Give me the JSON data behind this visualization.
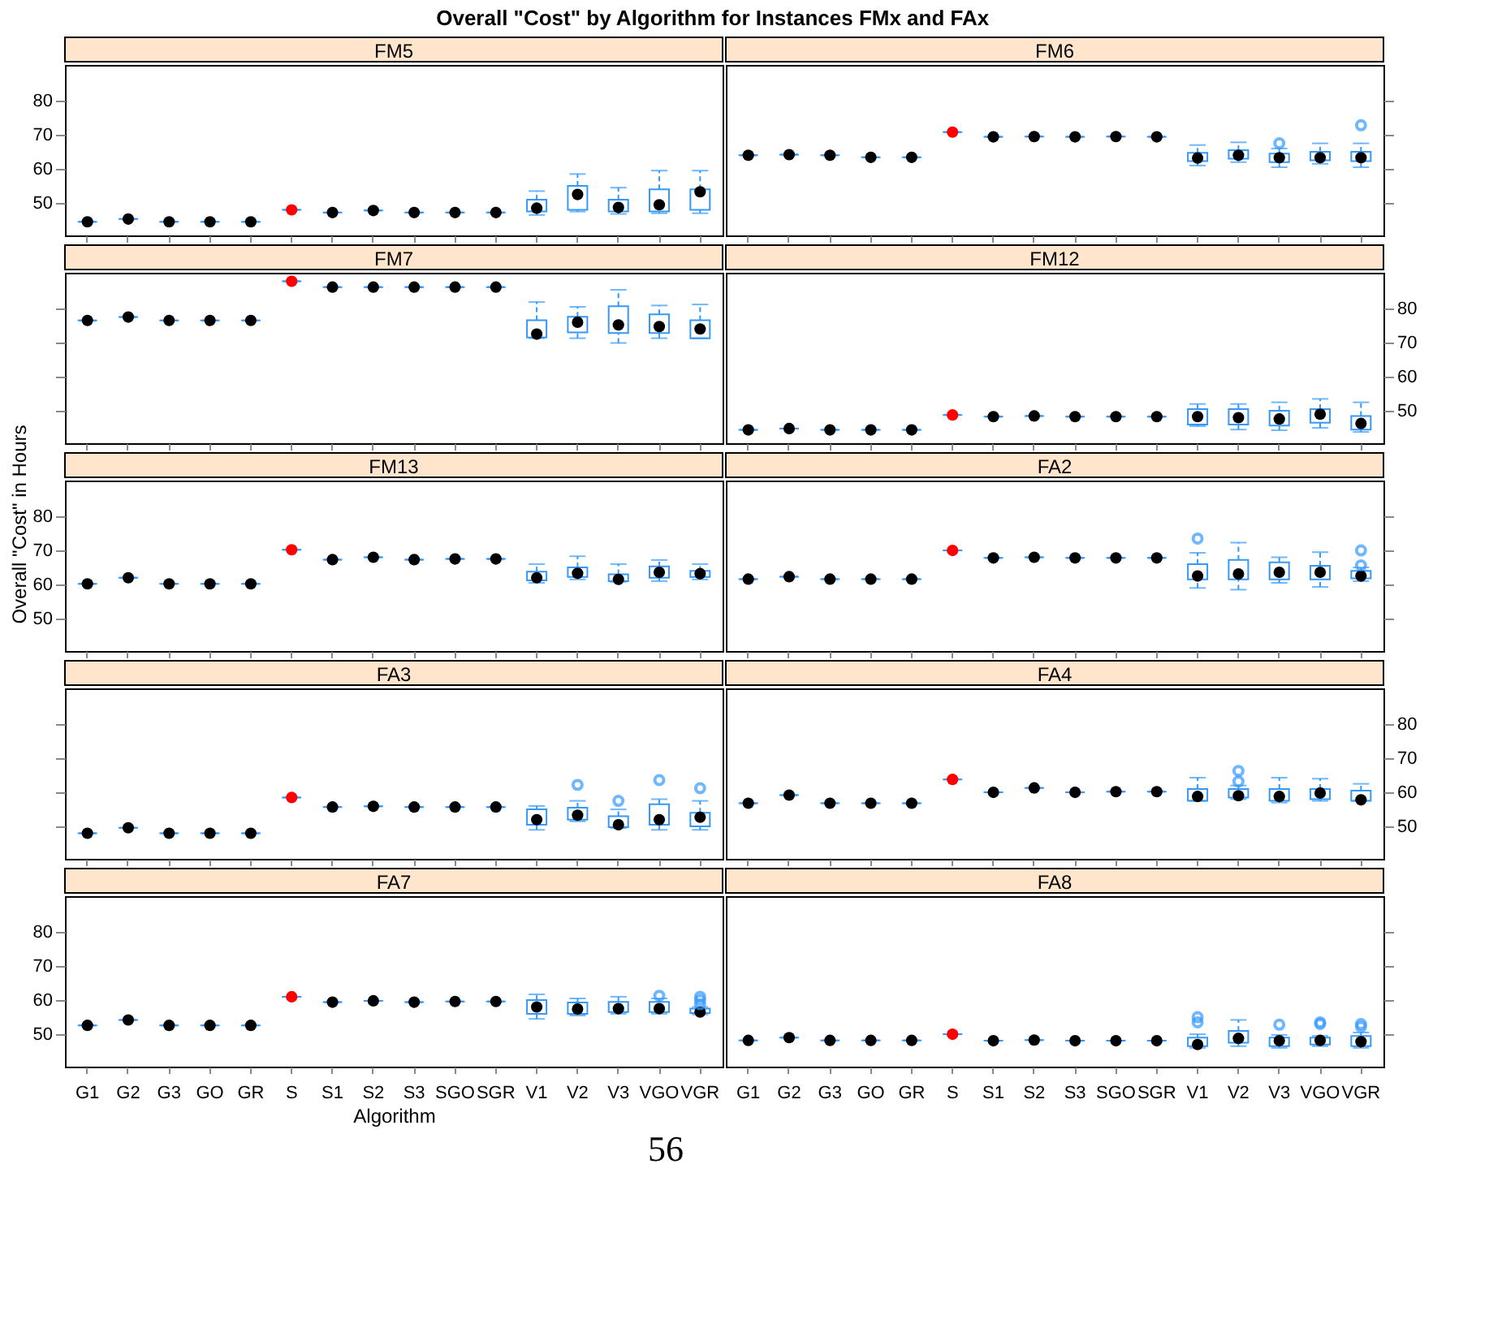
{
  "chart_data": [
    {
      "type": "box",
      "title": "FM5",
      "annotations": [
        "Overall \"Cost\" by Algorithm for Instances FMx and FAx"
      ],
      "tick_labels": "y",
      "ylim": [
        40.5,
        90.5
      ],
      "yticks": [
        50,
        60,
        70,
        80
      ],
      "color": "#3399ff",
      "categories": [
        "G1",
        "G2",
        "G3",
        "GO",
        "GR",
        "S",
        "S1",
        "S2",
        "S3",
        "SGO",
        "SGR",
        "V1",
        "V2",
        "V3",
        "VGO",
        "VGR"
      ],
      "series": [
        {
          "type": "scatter",
          "color": "#000000",
          "colors": [
            "#000000",
            "#000000",
            "#000000",
            "#000000",
            "#000000",
            "#ff0000",
            "#000000",
            "#000000",
            "#000000",
            "#000000",
            "#000000",
            "#000000",
            "#000000",
            "#000000",
            "#000000",
            "#000000"
          ],
          "x": [
            "G1",
            "G2",
            "G3",
            "GO",
            "GR",
            "S",
            "S1",
            "S2",
            "S3",
            "SGO",
            "SGR",
            "V1",
            "V2",
            "V3",
            "VGO",
            "VGR"
          ],
          "values": [
            44.5,
            45.3,
            44.5,
            44.5,
            44.5,
            48,
            47.2,
            47.8,
            47.2,
            47.2,
            47.2,
            null,
            null,
            null,
            null,
            null
          ]
        }
      ],
      "boxes": [
        {
          "low": 44.5,
          "q1": 44.5,
          "median": 44.5,
          "q3": 44.5,
          "high": 44.5
        },
        {
          "low": 45.3,
          "q1": 45.3,
          "median": 45.3,
          "q3": 45.3,
          "high": 45.3
        },
        {
          "low": 44.5,
          "q1": 44.5,
          "median": 44.5,
          "q3": 44.5,
          "high": 44.5
        },
        {
          "low": 44.5,
          "q1": 44.5,
          "median": 44.5,
          "q3": 44.5,
          "high": 44.5
        },
        {
          "low": 44.5,
          "q1": 44.5,
          "median": 44.5,
          "q3": 44.5,
          "high": 44.5
        },
        {
          "low": 48,
          "q1": 48,
          "median": 48,
          "q3": 48,
          "high": 48
        },
        {
          "low": 47.2,
          "q1": 47.2,
          "median": 47.2,
          "q3": 47.2,
          "high": 47.2
        },
        {
          "low": 47.8,
          "q1": 47.8,
          "median": 47.8,
          "q3": 47.8,
          "high": 47.8
        },
        {
          "low": 47.2,
          "q1": 47.2,
          "median": 47.2,
          "q3": 47.2,
          "high": 47.2
        },
        {
          "low": 47.2,
          "q1": 47.2,
          "median": 47.2,
          "q3": 47.2,
          "high": 47.2
        },
        {
          "low": 47.2,
          "q1": 47.2,
          "median": 47.2,
          "q3": 47.2,
          "high": 47.2
        },
        {
          "low": 46.5,
          "q1": 47.5,
          "median": 48.5,
          "q3": 51,
          "high": 53.5
        },
        {
          "low": 47.5,
          "q1": 48,
          "median": 52.5,
          "q3": 55,
          "high": 58.5
        },
        {
          "low": 46.8,
          "q1": 47.5,
          "median": 48.7,
          "q3": 51,
          "high": 54.5
        },
        {
          "low": 47,
          "q1": 47.5,
          "median": 49.5,
          "q3": 54,
          "high": 59.5
        },
        {
          "low": 47,
          "q1": 48,
          "median": 53.3,
          "q3": 54,
          "high": 59.5
        }
      ]
    },
    {
      "type": "box",
      "title": "FM6",
      "tick_labels": false,
      "ylim": [
        40.5,
        90.5
      ],
      "yticks": [
        50,
        60,
        70,
        80
      ],
      "color": "#3399ff",
      "categories": [
        "G1",
        "G2",
        "G3",
        "GO",
        "GR",
        "S",
        "S1",
        "S2",
        "S3",
        "SGO",
        "SGR",
        "V1",
        "V2",
        "V3",
        "VGO",
        "VGR"
      ],
      "series": [
        {
          "type": "scatter",
          "color": "#000000",
          "colors": [
            "#000000",
            "#000000",
            "#000000",
            "#000000",
            "#000000",
            "#ff0000",
            "#000000",
            "#000000",
            "#000000",
            "#000000",
            "#000000",
            "#000000",
            "#000000",
            "#000000",
            "#000000",
            "#000000"
          ],
          "x": [
            "G1",
            "G2",
            "G3",
            "GO",
            "GR",
            "S",
            "S1",
            "S2",
            "S3",
            "SGO",
            "SGR",
            "V1",
            "V2",
            "V3",
            "VGO",
            "VGR"
          ],
          "values": [
            64,
            64.2,
            64,
            63.4,
            63.4,
            70.8,
            69.4,
            69.5,
            69.4,
            69.5,
            69.4,
            63.2,
            null,
            null,
            63.3,
            null
          ]
        }
      ],
      "boxes": [
        {
          "low": 64,
          "q1": 64,
          "median": 64,
          "q3": 64,
          "high": 64
        },
        {
          "low": 64.2,
          "q1": 64.2,
          "median": 64.2,
          "q3": 64.2,
          "high": 64.2
        },
        {
          "low": 64,
          "q1": 64,
          "median": 64,
          "q3": 64,
          "high": 64
        },
        {
          "low": 63.4,
          "q1": 63.4,
          "median": 63.4,
          "q3": 63.4,
          "high": 63.4
        },
        {
          "low": 63.4,
          "q1": 63.4,
          "median": 63.4,
          "q3": 63.4,
          "high": 63.4
        },
        {
          "low": 70.8,
          "q1": 70.8,
          "median": 70.8,
          "q3": 70.8,
          "high": 70.8
        },
        {
          "low": 69.4,
          "q1": 69.4,
          "median": 69.4,
          "q3": 69.4,
          "high": 69.4
        },
        {
          "low": 69.5,
          "q1": 69.5,
          "median": 69.5,
          "q3": 69.5,
          "high": 69.5
        },
        {
          "low": 69.4,
          "q1": 69.4,
          "median": 69.4,
          "q3": 69.4,
          "high": 69.4
        },
        {
          "low": 69.5,
          "q1": 69.5,
          "median": 69.5,
          "q3": 69.5,
          "high": 69.5
        },
        {
          "low": 69.4,
          "q1": 69.4,
          "median": 69.4,
          "q3": 69.4,
          "high": 69.4
        },
        {
          "low": 61,
          "q1": 62.3,
          "median": 63.2,
          "q3": 64.7,
          "high": 67
        },
        {
          "low": 62,
          "q1": 63,
          "median": 64,
          "q3": 65.5,
          "high": 67.8
        },
        {
          "low": 60.5,
          "q1": 62,
          "median": 63.3,
          "q3": 64.5,
          "high": 66,
          "outliers": [
            67.5
          ]
        },
        {
          "low": 61.5,
          "q1": 62.5,
          "median": 63.3,
          "q3": 65,
          "high": 67.5
        },
        {
          "low": 60.5,
          "q1": 62.3,
          "median": 63.3,
          "q3": 65,
          "high": 67.5,
          "outliers": [
            72.8
          ]
        }
      ]
    },
    {
      "type": "box",
      "title": "FM7",
      "tick_labels": false,
      "ylim": [
        40.5,
        90.5
      ],
      "yticks": [
        50,
        60,
        70,
        80
      ],
      "color": "#3399ff",
      "categories": [
        "G1",
        "G2",
        "G3",
        "GO",
        "GR",
        "S",
        "S1",
        "S2",
        "S3",
        "SGO",
        "SGR",
        "V1",
        "V2",
        "V3",
        "VGO",
        "VGR"
      ],
      "series": [
        {
          "type": "scatter",
          "color": "#000000",
          "colors": [
            "#000000",
            "#000000",
            "#000000",
            "#000000",
            "#000000",
            "#ff0000",
            "#000000",
            "#000000",
            "#000000",
            "#000000",
            "#000000",
            "#000000",
            "#000000",
            "#000000",
            "#000000",
            "#000000"
          ],
          "x": [
            "G1",
            "G2",
            "G3",
            "GO",
            "GR",
            "S",
            "S1",
            "S2",
            "S3",
            "SGO",
            "SGR",
            "V1",
            "V2",
            "V3",
            "VGO",
            "VGR"
          ],
          "values": [
            76.5,
            77.5,
            76.5,
            76.5,
            76.5,
            88,
            86.3,
            86.3,
            86.3,
            86.3,
            86.3,
            null,
            null,
            null,
            null,
            null
          ]
        }
      ],
      "boxes": [
        {
          "low": 76.5,
          "q1": 76.5,
          "median": 76.5,
          "q3": 76.5,
          "high": 76.5
        },
        {
          "low": 77.5,
          "q1": 77.5,
          "median": 77.5,
          "q3": 77.5,
          "high": 77.5
        },
        {
          "low": 76.5,
          "q1": 76.5,
          "median": 76.5,
          "q3": 76.5,
          "high": 76.5
        },
        {
          "low": 76.5,
          "q1": 76.5,
          "median": 76.5,
          "q3": 76.5,
          "high": 76.5
        },
        {
          "low": 76.5,
          "q1": 76.5,
          "median": 76.5,
          "q3": 76.5,
          "high": 76.5
        },
        {
          "low": 88,
          "q1": 88,
          "median": 88,
          "q3": 88,
          "high": 88
        },
        {
          "low": 86.3,
          "q1": 86.3,
          "median": 86.3,
          "q3": 86.3,
          "high": 86.3
        },
        {
          "low": 86.3,
          "q1": 86.3,
          "median": 86.3,
          "q3": 86.3,
          "high": 86.3
        },
        {
          "low": 86.3,
          "q1": 86.3,
          "median": 86.3,
          "q3": 86.3,
          "high": 86.3
        },
        {
          "low": 86.3,
          "q1": 86.3,
          "median": 86.3,
          "q3": 86.3,
          "high": 86.3
        },
        {
          "low": 86.3,
          "q1": 86.3,
          "median": 86.3,
          "q3": 86.3,
          "high": 86.3
        },
        {
          "low": 71.3,
          "q1": 71.5,
          "median": 72.5,
          "q3": 76.6,
          "high": 81.9
        },
        {
          "low": 71.3,
          "q1": 73,
          "median": 76,
          "q3": 77.6,
          "high": 80.5
        },
        {
          "low": 69.9,
          "q1": 72.8,
          "median": 75.2,
          "q3": 80.7,
          "high": 85.5
        },
        {
          "low": 71.3,
          "q1": 72.8,
          "median": 74.7,
          "q3": 78.3,
          "high": 80.9
        },
        {
          "low": 71.3,
          "q1": 71.3,
          "median": 74,
          "q3": 76.6,
          "high": 81.2
        }
      ]
    },
    {
      "type": "box",
      "title": "FM12",
      "tick_labels": "y",
      "ylim": [
        40.5,
        90.5
      ],
      "yticks": [
        50,
        60,
        70,
        80
      ],
      "color": "#3399ff",
      "categories": [
        "G1",
        "G2",
        "G3",
        "GO",
        "GR",
        "S",
        "S1",
        "S2",
        "S3",
        "SGO",
        "SGR",
        "V1",
        "V2",
        "V3",
        "VGO",
        "VGR"
      ],
      "series": [
        {
          "type": "scatter",
          "color": "#000000",
          "colors": [
            "#000000",
            "#000000",
            "#000000",
            "#000000",
            "#000000",
            "#ff0000",
            "#000000",
            "#000000",
            "#000000",
            "#000000",
            "#000000",
            "#000000",
            "#000000",
            "#000000",
            "#000000",
            "#000000"
          ],
          "x": [
            "G1",
            "G2",
            "G3",
            "GO",
            "GR",
            "S",
            "S1",
            "S2",
            "S3",
            "SGO",
            "SGR",
            "V1",
            "V2",
            "V3",
            "VGO",
            "VGR"
          ],
          "values": [
            44.4,
            44.8,
            44.4,
            44.4,
            44.4,
            48.8,
            48.3,
            48.5,
            48.3,
            48.3,
            48.3,
            null,
            null,
            null,
            null,
            null
          ]
        }
      ],
      "boxes": [
        {
          "low": 44.4,
          "q1": 44.4,
          "median": 44.4,
          "q3": 44.4,
          "high": 44.4
        },
        {
          "low": 44.8,
          "q1": 44.8,
          "median": 44.8,
          "q3": 44.8,
          "high": 44.8
        },
        {
          "low": 44.4,
          "q1": 44.4,
          "median": 44.4,
          "q3": 44.4,
          "high": 44.4
        },
        {
          "low": 44.4,
          "q1": 44.4,
          "median": 44.4,
          "q3": 44.4,
          "high": 44.4
        },
        {
          "low": 44.4,
          "q1": 44.4,
          "median": 44.4,
          "q3": 44.4,
          "high": 44.4
        },
        {
          "low": 48.8,
          "q1": 48.8,
          "median": 48.8,
          "q3": 48.8,
          "high": 48.8
        },
        {
          "low": 48.3,
          "q1": 48.3,
          "median": 48.3,
          "q3": 48.3,
          "high": 48.3
        },
        {
          "low": 48.5,
          "q1": 48.5,
          "median": 48.5,
          "q3": 48.5,
          "high": 48.5
        },
        {
          "low": 48.3,
          "q1": 48.3,
          "median": 48.3,
          "q3": 48.3,
          "high": 48.3
        },
        {
          "low": 48.3,
          "q1": 48.3,
          "median": 48.3,
          "q3": 48.3,
          "high": 48.3
        },
        {
          "low": 48.3,
          "q1": 48.3,
          "median": 48.3,
          "q3": 48.3,
          "high": 48.3
        },
        {
          "low": 45.5,
          "q1": 46,
          "median": 48.3,
          "q3": 50.5,
          "high": 52
        },
        {
          "low": 44.5,
          "q1": 46,
          "median": 48,
          "q3": 50.5,
          "high": 52
        },
        {
          "low": 44.3,
          "q1": 45.7,
          "median": 47.6,
          "q3": 50,
          "high": 52.5
        },
        {
          "low": 45,
          "q1": 46.5,
          "median": 49,
          "q3": 50.5,
          "high": 53.5
        },
        {
          "low": 43.8,
          "q1": 44.5,
          "median": 46.3,
          "q3": 48.5,
          "high": 52.5
        }
      ]
    },
    {
      "type": "box",
      "title": "FM13",
      "ylabel": "Overall \"Cost\" in Hours",
      "tick_labels": "y",
      "ylim": [
        40.5,
        90.5
      ],
      "yticks": [
        50,
        60,
        70,
        80
      ],
      "color": "#3399ff",
      "categories": [
        "G1",
        "G2",
        "G3",
        "GO",
        "GR",
        "S",
        "S1",
        "S2",
        "S3",
        "SGO",
        "SGR",
        "V1",
        "V2",
        "V3",
        "VGO",
        "VGR"
      ],
      "series": [
        {
          "type": "scatter",
          "color": "#000000",
          "colors": [
            "#000000",
            "#000000",
            "#000000",
            "#000000",
            "#000000",
            "#ff0000",
            "#000000",
            "#000000",
            "#000000",
            "#000000",
            "#000000",
            "#000000",
            "#000000",
            "#000000",
            "#000000",
            "#000000"
          ],
          "x": [
            "G1",
            "G2",
            "G3",
            "GO",
            "GR",
            "S",
            "S1",
            "S2",
            "S3",
            "SGO",
            "SGR",
            "V1",
            "V2",
            "V3",
            "VGO",
            "VGR"
          ],
          "values": [
            60.2,
            62,
            60.2,
            60.2,
            60.2,
            70.2,
            67.3,
            68,
            67.3,
            67.5,
            67.5,
            62,
            null,
            61.5,
            null,
            null
          ]
        }
      ],
      "boxes": [
        {
          "low": 60.2,
          "q1": 60.2,
          "median": 60.2,
          "q3": 60.2,
          "high": 60.2
        },
        {
          "low": 62,
          "q1": 62,
          "median": 62,
          "q3": 62,
          "high": 62
        },
        {
          "low": 60.2,
          "q1": 60.2,
          "median": 60.2,
          "q3": 60.2,
          "high": 60.2
        },
        {
          "low": 60.2,
          "q1": 60.2,
          "median": 60.2,
          "q3": 60.2,
          "high": 60.2
        },
        {
          "low": 60.2,
          "q1": 60.2,
          "median": 60.2,
          "q3": 60.2,
          "high": 60.2
        },
        {
          "low": 70.2,
          "q1": 70.2,
          "median": 70.2,
          "q3": 70.2,
          "high": 70.2
        },
        {
          "low": 67.3,
          "q1": 67.3,
          "median": 67.3,
          "q3": 67.3,
          "high": 67.3
        },
        {
          "low": 68,
          "q1": 68,
          "median": 68,
          "q3": 68,
          "high": 68
        },
        {
          "low": 67.3,
          "q1": 67.3,
          "median": 67.3,
          "q3": 67.3,
          "high": 67.3
        },
        {
          "low": 67.5,
          "q1": 67.5,
          "median": 67.5,
          "q3": 67.5,
          "high": 67.5
        },
        {
          "low": 67.5,
          "q1": 67.5,
          "median": 67.5,
          "q3": 67.5,
          "high": 67.5
        },
        {
          "low": 60.5,
          "q1": 61.2,
          "median": 62,
          "q3": 63.8,
          "high": 66
        },
        {
          "low": 61.5,
          "q1": 62.2,
          "median": 63.3,
          "q3": 65,
          "high": 68.3
        },
        {
          "low": 60.8,
          "q1": 61,
          "median": 61.5,
          "q3": 63,
          "high": 66
        },
        {
          "low": 61,
          "q1": 62,
          "median": 63.6,
          "q3": 65.3,
          "high": 67.2
        },
        {
          "low": 61.5,
          "q1": 62.2,
          "median": 63.2,
          "q3": 64,
          "high": 66
        }
      ]
    },
    {
      "type": "box",
      "title": "FA2",
      "tick_labels": false,
      "ylim": [
        40.5,
        90.5
      ],
      "yticks": [
        50,
        60,
        70,
        80
      ],
      "color": "#3399ff",
      "categories": [
        "G1",
        "G2",
        "G3",
        "GO",
        "GR",
        "S",
        "S1",
        "S2",
        "S3",
        "SGO",
        "SGR",
        "V1",
        "V2",
        "V3",
        "VGO",
        "VGR"
      ],
      "series": [
        {
          "type": "scatter",
          "color": "#000000",
          "colors": [
            "#000000",
            "#000000",
            "#000000",
            "#000000",
            "#000000",
            "#ff0000",
            "#000000",
            "#000000",
            "#000000",
            "#000000",
            "#000000",
            "#000000",
            "#000000",
            "#000000",
            "#000000",
            "#000000"
          ],
          "x": [
            "G1",
            "G2",
            "G3",
            "GO",
            "GR",
            "S",
            "S1",
            "S2",
            "S3",
            "SGO",
            "SGR",
            "V1",
            "V2",
            "V3",
            "VGO",
            "VGR"
          ],
          "values": [
            61.6,
            62.3,
            61.6,
            61.6,
            61.6,
            70,
            67.8,
            68,
            67.8,
            67.8,
            67.8,
            null,
            null,
            null,
            null,
            62.5
          ]
        }
      ],
      "boxes": [
        {
          "low": 61.6,
          "q1": 61.6,
          "median": 61.6,
          "q3": 61.6,
          "high": 61.6
        },
        {
          "low": 62.3,
          "q1": 62.3,
          "median": 62.3,
          "q3": 62.3,
          "high": 62.3
        },
        {
          "low": 61.6,
          "q1": 61.6,
          "median": 61.6,
          "q3": 61.6,
          "high": 61.6
        },
        {
          "low": 61.6,
          "q1": 61.6,
          "median": 61.6,
          "q3": 61.6,
          "high": 61.6
        },
        {
          "low": 61.6,
          "q1": 61.6,
          "median": 61.6,
          "q3": 61.6,
          "high": 61.6
        },
        {
          "low": 70,
          "q1": 70,
          "median": 70,
          "q3": 70,
          "high": 70
        },
        {
          "low": 67.8,
          "q1": 67.8,
          "median": 67.8,
          "q3": 67.8,
          "high": 67.8
        },
        {
          "low": 68,
          "q1": 68,
          "median": 68,
          "q3": 68,
          "high": 68
        },
        {
          "low": 67.8,
          "q1": 67.8,
          "median": 67.8,
          "q3": 67.8,
          "high": 67.8
        },
        {
          "low": 67.8,
          "q1": 67.8,
          "median": 67.8,
          "q3": 67.8,
          "high": 67.8
        },
        {
          "low": 67.8,
          "q1": 67.8,
          "median": 67.8,
          "q3": 67.8,
          "high": 67.8
        },
        {
          "low": 59,
          "q1": 61.5,
          "median": 62.5,
          "q3": 66,
          "high": 69.3,
          "outliers": [
            73.5
          ]
        },
        {
          "low": 58.5,
          "q1": 61.5,
          "median": 63.1,
          "q3": 67.2,
          "high": 72.3
        },
        {
          "low": 60.5,
          "q1": 61.5,
          "median": 63.6,
          "q3": 66.5,
          "high": 68
        },
        {
          "low": 59.3,
          "q1": 61.5,
          "median": 63.6,
          "q3": 65.5,
          "high": 69.5
        },
        {
          "low": 61,
          "q1": 61.8,
          "median": 62.5,
          "q3": 64,
          "high": 65,
          "outliers": [
            65.6,
            70
          ]
        }
      ]
    },
    {
      "type": "box",
      "title": "FA3",
      "tick_labels": false,
      "ylim": [
        40.5,
        90.5
      ],
      "yticks": [
        50,
        60,
        70,
        80
      ],
      "color": "#3399ff",
      "categories": [
        "G1",
        "G2",
        "G3",
        "GO",
        "GR",
        "S",
        "S1",
        "S2",
        "S3",
        "SGO",
        "SGR",
        "V1",
        "V2",
        "V3",
        "VGO",
        "VGR"
      ],
      "series": [
        {
          "type": "scatter",
          "color": "#000000",
          "colors": [
            "#000000",
            "#000000",
            "#000000",
            "#000000",
            "#000000",
            "#ff0000",
            "#000000",
            "#000000",
            "#000000",
            "#000000",
            "#000000",
            "#000000",
            "#000000",
            "#000000",
            "#000000",
            "#000000"
          ],
          "x": [
            "G1",
            "G2",
            "G3",
            "GO",
            "GR",
            "S",
            "S1",
            "S2",
            "S3",
            "SGO",
            "SGR",
            "V1",
            "V2",
            "V3",
            "VGO",
            "VGR"
          ],
          "values": [
            48,
            49.6,
            48,
            48,
            48,
            58.5,
            55.7,
            55.9,
            55.7,
            55.7,
            55.7,
            null,
            null,
            50.5,
            null,
            null
          ]
        }
      ],
      "boxes": [
        {
          "low": 48,
          "q1": 48,
          "median": 48,
          "q3": 48,
          "high": 48
        },
        {
          "low": 49.6,
          "q1": 49.6,
          "median": 49.6,
          "q3": 49.6,
          "high": 49.6
        },
        {
          "low": 48,
          "q1": 48,
          "median": 48,
          "q3": 48,
          "high": 48
        },
        {
          "low": 48,
          "q1": 48,
          "median": 48,
          "q3": 48,
          "high": 48
        },
        {
          "low": 48,
          "q1": 48,
          "median": 48,
          "q3": 48,
          "high": 48
        },
        {
          "low": 58.5,
          "q1": 58.5,
          "median": 58.5,
          "q3": 58.5,
          "high": 58.5
        },
        {
          "low": 55.7,
          "q1": 55.7,
          "median": 55.7,
          "q3": 55.7,
          "high": 55.7
        },
        {
          "low": 55.9,
          "q1": 55.9,
          "median": 55.9,
          "q3": 55.9,
          "high": 55.9
        },
        {
          "low": 55.7,
          "q1": 55.7,
          "median": 55.7,
          "q3": 55.7,
          "high": 55.7
        },
        {
          "low": 55.7,
          "q1": 55.7,
          "median": 55.7,
          "q3": 55.7,
          "high": 55.7
        },
        {
          "low": 55.7,
          "q1": 55.7,
          "median": 55.7,
          "q3": 55.7,
          "high": 55.7
        },
        {
          "low": 49,
          "q1": 50.5,
          "median": 52,
          "q3": 55,
          "high": 56
        },
        {
          "low": 51.5,
          "q1": 52,
          "median": 53.3,
          "q3": 55.5,
          "high": 57.5,
          "outliers": [
            62.2
          ]
        },
        {
          "low": 49.5,
          "q1": 49.8,
          "median": 50.5,
          "q3": 53,
          "high": 55,
          "outliers": [
            57.5
          ]
        },
        {
          "low": 49,
          "q1": 50.5,
          "median": 52,
          "q3": 56.5,
          "high": 58,
          "outliers": [
            63.6
          ]
        },
        {
          "low": 49,
          "q1": 50,
          "median": 52.7,
          "q3": 54,
          "high": 57.5,
          "outliers": [
            61.2
          ]
        }
      ]
    },
    {
      "type": "box",
      "title": "FA4",
      "tick_labels": "y",
      "ylim": [
        40.5,
        90.5
      ],
      "yticks": [
        50,
        60,
        70,
        80
      ],
      "color": "#3399ff",
      "categories": [
        "G1",
        "G2",
        "G3",
        "GO",
        "GR",
        "S",
        "S1",
        "S2",
        "S3",
        "SGO",
        "SGR",
        "V1",
        "V2",
        "V3",
        "VGO",
        "VGR"
      ],
      "series": [
        {
          "type": "scatter",
          "color": "#000000",
          "colors": [
            "#000000",
            "#000000",
            "#000000",
            "#000000",
            "#000000",
            "#ff0000",
            "#000000",
            "#000000",
            "#000000",
            "#000000",
            "#000000",
            "#000000",
            "#000000",
            "#000000",
            "#000000",
            "#000000"
          ],
          "x": [
            "G1",
            "G2",
            "G3",
            "GO",
            "GR",
            "S",
            "S1",
            "S2",
            "S3",
            "SGO",
            "SGR",
            "V1",
            "V2",
            "V3",
            "VGO",
            "VGR"
          ],
          "values": [
            56.8,
            59.2,
            56.8,
            56.8,
            56.8,
            63.8,
            60,
            61.3,
            60,
            60.2,
            60.2,
            null,
            59,
            null,
            59.8,
            57.8
          ]
        }
      ],
      "boxes": [
        {
          "low": 56.8,
          "q1": 56.8,
          "median": 56.8,
          "q3": 56.8,
          "high": 56.8
        },
        {
          "low": 59.2,
          "q1": 59.2,
          "median": 59.2,
          "q3": 59.2,
          "high": 59.2
        },
        {
          "low": 56.8,
          "q1": 56.8,
          "median": 56.8,
          "q3": 56.8,
          "high": 56.8
        },
        {
          "low": 56.8,
          "q1": 56.8,
          "median": 56.8,
          "q3": 56.8,
          "high": 56.8
        },
        {
          "low": 56.8,
          "q1": 56.8,
          "median": 56.8,
          "q3": 56.8,
          "high": 56.8
        },
        {
          "low": 63.8,
          "q1": 63.8,
          "median": 63.8,
          "q3": 63.8,
          "high": 63.8
        },
        {
          "low": 60,
          "q1": 60,
          "median": 60,
          "q3": 60,
          "high": 60
        },
        {
          "low": 61.3,
          "q1": 61.3,
          "median": 61.3,
          "q3": 61.3,
          "high": 61.3
        },
        {
          "low": 60,
          "q1": 60,
          "median": 60,
          "q3": 60,
          "high": 60
        },
        {
          "low": 60.2,
          "q1": 60.2,
          "median": 60.2,
          "q3": 60.2,
          "high": 60.2
        },
        {
          "low": 60.2,
          "q1": 60.2,
          "median": 60.2,
          "q3": 60.2,
          "high": 60.2
        },
        {
          "low": 57.5,
          "q1": 57.5,
          "median": 58.8,
          "q3": 61,
          "high": 64.3
        },
        {
          "low": 58,
          "q1": 58.5,
          "median": 59,
          "q3": 61,
          "high": 62,
          "outliers": [
            63.2,
            66.3
          ]
        },
        {
          "low": 57,
          "q1": 57.5,
          "median": 58.8,
          "q3": 61,
          "high": 64.3
        },
        {
          "low": 57.5,
          "q1": 58,
          "median": 59.8,
          "q3": 61,
          "high": 64
        },
        {
          "low": 57.5,
          "q1": 57.5,
          "median": 57.8,
          "q3": 60.5,
          "high": 62.5
        }
      ]
    },
    {
      "type": "box",
      "title": "FA7",
      "xlabel": "Algorithm",
      "ylim": [
        40.5,
        90.5
      ],
      "yticks": [
        50,
        60,
        70,
        80
      ],
      "color": "#3399ff",
      "categories": [
        "G1",
        "G2",
        "G3",
        "GO",
        "GR",
        "S",
        "S1",
        "S2",
        "S3",
        "SGO",
        "SGR",
        "V1",
        "V2",
        "V3",
        "VGO",
        "VGR"
      ],
      "series": [
        {
          "type": "scatter",
          "color": "#000000",
          "colors": [
            "#000000",
            "#000000",
            "#000000",
            "#000000",
            "#000000",
            "#ff0000",
            "#000000",
            "#000000",
            "#000000",
            "#000000",
            "#000000",
            "#000000",
            "#000000",
            "#000000",
            "#000000",
            "#000000"
          ],
          "x": [
            "G1",
            "G2",
            "G3",
            "GO",
            "GR",
            "S",
            "S1",
            "S2",
            "S3",
            "SGO",
            "SGR",
            "V1",
            "V2",
            "V3",
            "VGO",
            "VGR"
          ],
          "values": [
            52.6,
            54.2,
            52.6,
            52.6,
            52.6,
            61,
            59.4,
            59.8,
            59.4,
            59.6,
            59.6,
            null,
            null,
            null,
            null,
            56.5
          ]
        }
      ],
      "boxes": [
        {
          "low": 52.6,
          "q1": 52.6,
          "median": 52.6,
          "q3": 52.6,
          "high": 52.6
        },
        {
          "low": 54.2,
          "q1": 54.2,
          "median": 54.2,
          "q3": 54.2,
          "high": 54.2
        },
        {
          "low": 52.6,
          "q1": 52.6,
          "median": 52.6,
          "q3": 52.6,
          "high": 52.6
        },
        {
          "low": 52.6,
          "q1": 52.6,
          "median": 52.6,
          "q3": 52.6,
          "high": 52.6
        },
        {
          "low": 52.6,
          "q1": 52.6,
          "median": 52.6,
          "q3": 52.6,
          "high": 52.6
        },
        {
          "low": 61,
          "q1": 61,
          "median": 61,
          "q3": 61,
          "high": 61
        },
        {
          "low": 59.4,
          "q1": 59.4,
          "median": 59.4,
          "q3": 59.4,
          "high": 59.4
        },
        {
          "low": 59.8,
          "q1": 59.8,
          "median": 59.8,
          "q3": 59.8,
          "high": 59.8
        },
        {
          "low": 59.4,
          "q1": 59.4,
          "median": 59.4,
          "q3": 59.4,
          "high": 59.4
        },
        {
          "low": 59.6,
          "q1": 59.6,
          "median": 59.6,
          "q3": 59.6,
          "high": 59.6
        },
        {
          "low": 59.6,
          "q1": 59.6,
          "median": 59.6,
          "q3": 59.6,
          "high": 59.6
        },
        {
          "low": 54.5,
          "q1": 56,
          "median": 58,
          "q3": 60,
          "high": 61.7
        },
        {
          "low": 55.5,
          "q1": 56,
          "median": 57.4,
          "q3": 59.3,
          "high": 60.5
        },
        {
          "low": 56,
          "q1": 56.5,
          "median": 57.5,
          "q3": 59.5,
          "high": 61
        },
        {
          "low": 56,
          "q1": 56.5,
          "median": 57.5,
          "q3": 59.5,
          "high": 60.5,
          "outliers": [
            61.3
          ]
        },
        {
          "low": 55.8,
          "q1": 56.2,
          "median": 56.5,
          "q3": 57.5,
          "high": 58,
          "outliers": [
            58.8,
            60,
            61
          ]
        }
      ]
    },
    {
      "type": "box",
      "title": "FA8",
      "annotations": [
        "56"
      ],
      "tick_labels": "x",
      "ylim": [
        40.5,
        90.5
      ],
      "yticks": [
        50,
        60,
        70,
        80
      ],
      "color": "#3399ff",
      "categories": [
        "G1",
        "G2",
        "G3",
        "GO",
        "GR",
        "S",
        "S1",
        "S2",
        "S3",
        "SGO",
        "SGR",
        "V1",
        "V2",
        "V3",
        "VGO",
        "VGR"
      ],
      "series": [
        {
          "type": "scatter",
          "color": "#000000",
          "colors": [
            "#000000",
            "#000000",
            "#000000",
            "#000000",
            "#000000",
            "#ff0000",
            "#000000",
            "#000000",
            "#000000",
            "#000000",
            "#000000",
            "#000000",
            "#000000",
            "#000000",
            "#000000",
            "#000000"
          ],
          "x": [
            "G1",
            "G2",
            "G3",
            "GO",
            "GR",
            "S",
            "S1",
            "S2",
            "S3",
            "SGO",
            "SGR",
            "V1",
            "V2",
            "V3",
            "VGO",
            "VGR"
          ],
          "values": [
            48.2,
            49,
            48.2,
            48.2,
            48.2,
            50,
            48.1,
            48.3,
            48.1,
            48.1,
            48.1,
            47,
            null,
            48.1,
            null,
            null
          ]
        }
      ],
      "boxes": [
        {
          "low": 48.2,
          "q1": 48.2,
          "median": 48.2,
          "q3": 48.2,
          "high": 48.2
        },
        {
          "low": 49,
          "q1": 49,
          "median": 49,
          "q3": 49,
          "high": 49
        },
        {
          "low": 48.2,
          "q1": 48.2,
          "median": 48.2,
          "q3": 48.2,
          "high": 48.2
        },
        {
          "low": 48.2,
          "q1": 48.2,
          "median": 48.2,
          "q3": 48.2,
          "high": 48.2
        },
        {
          "low": 48.2,
          "q1": 48.2,
          "median": 48.2,
          "q3": 48.2,
          "high": 48.2
        },
        {
          "low": 50,
          "q1": 50,
          "median": 50,
          "q3": 50,
          "high": 50
        },
        {
          "low": 48.1,
          "q1": 48.1,
          "median": 48.1,
          "q3": 48.1,
          "high": 48.1
        },
        {
          "low": 48.3,
          "q1": 48.3,
          "median": 48.3,
          "q3": 48.3,
          "high": 48.3
        },
        {
          "low": 48.1,
          "q1": 48.1,
          "median": 48.1,
          "q3": 48.1,
          "high": 48.1
        },
        {
          "low": 48.1,
          "q1": 48.1,
          "median": 48.1,
          "q3": 48.1,
          "high": 48.1
        },
        {
          "low": 48.1,
          "q1": 48.1,
          "median": 48.1,
          "q3": 48.1,
          "high": 48.1
        },
        {
          "low": 46,
          "q1": 46.5,
          "median": 47,
          "q3": 49,
          "high": 50,
          "outliers": [
            53.5,
            55
          ]
        },
        {
          "low": 46.5,
          "q1": 47.5,
          "median": 48.8,
          "q3": 51,
          "high": 54.2
        },
        {
          "low": 46,
          "q1": 46.5,
          "median": 48.1,
          "q3": 49,
          "high": 49.8,
          "outliers": [
            52.8
          ]
        },
        {
          "low": 46.5,
          "q1": 47,
          "median": 48.2,
          "q3": 49,
          "high": 49.5,
          "outliers": [
            53,
            53.5
          ]
        },
        {
          "low": 46,
          "q1": 46.5,
          "median": 47.8,
          "q3": 49.5,
          "high": 50.5,
          "outliers": [
            52.2,
            53
          ]
        }
      ]
    }
  ]
}
